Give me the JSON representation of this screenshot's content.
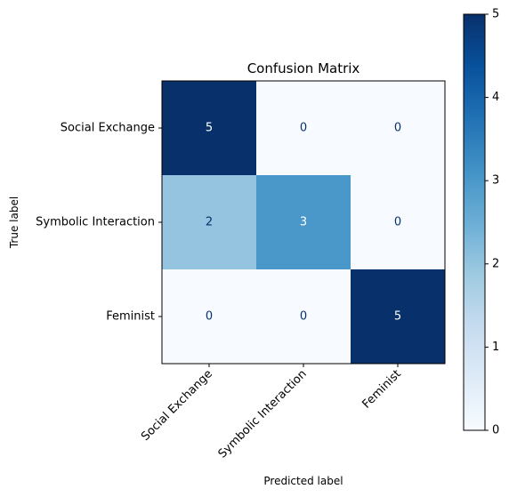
{
  "chart_data": {
    "type": "heatmap",
    "title": "Confusion Matrix",
    "xlabel": "Predicted label",
    "ylabel": "True label",
    "x_categories": [
      "Social Exchange",
      "Symbolic Interaction",
      "Feminist"
    ],
    "y_categories": [
      "Social Exchange",
      "Symbolic Interaction",
      "Feminist"
    ],
    "values": [
      [
        5,
        0,
        0
      ],
      [
        2,
        3,
        0
      ],
      [
        0,
        0,
        5
      ]
    ],
    "colorbar": {
      "min": 0,
      "max": 5,
      "ticks": [
        "0",
        "1",
        "2",
        "3",
        "4",
        "5"
      ]
    },
    "colormap": "Blues",
    "colors": {
      "low": "#f7fbff",
      "high": "#08306b",
      "text_dark_cell": "#ffffff",
      "text_light_cell": "#08306b"
    }
  }
}
